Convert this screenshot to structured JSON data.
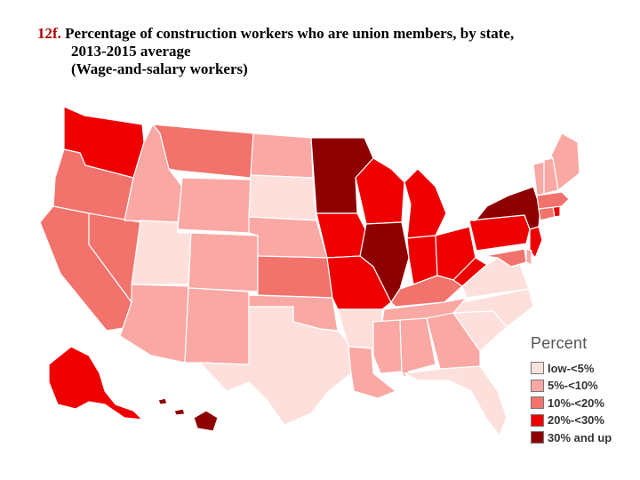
{
  "title": {
    "number": "12f.",
    "line1": "Percentage of construction workers who are union members, by state,",
    "line2": "2013-2015 average",
    "line3": "(Wage-and-salary workers)"
  },
  "legend": {
    "title": "Percent",
    "items": [
      {
        "label": "low-<5%",
        "color": "#fde0dc"
      },
      {
        "label": "5%-<10%",
        "color": "#f9a8a4"
      },
      {
        "label": "10%-<20%",
        "color": "#f2726c"
      },
      {
        "label": "20%-<30%",
        "color": "#ee0000"
      },
      {
        "label": "30% and up",
        "color": "#8e0000"
      }
    ]
  },
  "states": [
    {
      "id": "WA",
      "category": "20%-<30%"
    },
    {
      "id": "OR",
      "category": "10%-<20%"
    },
    {
      "id": "CA",
      "category": "10%-<20%"
    },
    {
      "id": "NV",
      "category": "10%-<20%"
    },
    {
      "id": "ID",
      "category": "5%-<10%"
    },
    {
      "id": "MT",
      "category": "10%-<20%"
    },
    {
      "id": "WY",
      "category": "5%-<10%"
    },
    {
      "id": "UT",
      "category": "low-<5%"
    },
    {
      "id": "AZ",
      "category": "5%-<10%"
    },
    {
      "id": "CO",
      "category": "5%-<10%"
    },
    {
      "id": "NM",
      "category": "5%-<10%"
    },
    {
      "id": "ND",
      "category": "5%-<10%"
    },
    {
      "id": "SD",
      "category": "low-<5%"
    },
    {
      "id": "NE",
      "category": "5%-<10%"
    },
    {
      "id": "KS",
      "category": "10%-<20%"
    },
    {
      "id": "OK",
      "category": "5%-<10%"
    },
    {
      "id": "TX",
      "category": "low-<5%"
    },
    {
      "id": "MN",
      "category": "30% and up"
    },
    {
      "id": "IA",
      "category": "20%-<30%"
    },
    {
      "id": "MO",
      "category": "20%-<30%"
    },
    {
      "id": "AR",
      "category": "low-<5%"
    },
    {
      "id": "LA",
      "category": "5%-<10%"
    },
    {
      "id": "WI",
      "category": "20%-<30%"
    },
    {
      "id": "IL",
      "category": "30% and up"
    },
    {
      "id": "MI",
      "category": "20%-<30%"
    },
    {
      "id": "IN",
      "category": "20%-<30%"
    },
    {
      "id": "OH",
      "category": "20%-<30%"
    },
    {
      "id": "KY",
      "category": "10%-<20%"
    },
    {
      "id": "TN",
      "category": "5%-<10%"
    },
    {
      "id": "MS",
      "category": "5%-<10%"
    },
    {
      "id": "AL",
      "category": "5%-<10%"
    },
    {
      "id": "GA",
      "category": "5%-<10%"
    },
    {
      "id": "FL",
      "category": "low-<5%"
    },
    {
      "id": "SC",
      "category": "low-<5%"
    },
    {
      "id": "NC",
      "category": "low-<5%"
    },
    {
      "id": "VA",
      "category": "low-<5%"
    },
    {
      "id": "WV",
      "category": "20%-<30%"
    },
    {
      "id": "PA",
      "category": "20%-<30%"
    },
    {
      "id": "NY",
      "category": "30% and up"
    },
    {
      "id": "NJ",
      "category": "20%-<30%"
    },
    {
      "id": "MD",
      "category": "10%-<20%"
    },
    {
      "id": "DE",
      "category": "5%-<10%"
    },
    {
      "id": "CT",
      "category": "10%-<20%"
    },
    {
      "id": "RI",
      "category": "20%-<30%"
    },
    {
      "id": "MA",
      "category": "10%-<20%"
    },
    {
      "id": "VT",
      "category": "5%-<10%"
    },
    {
      "id": "NH",
      "category": "5%-<10%"
    },
    {
      "id": "ME",
      "category": "5%-<10%"
    },
    {
      "id": "AK",
      "category": "20%-<30%"
    },
    {
      "id": "HI",
      "category": "30% and up"
    }
  ]
}
